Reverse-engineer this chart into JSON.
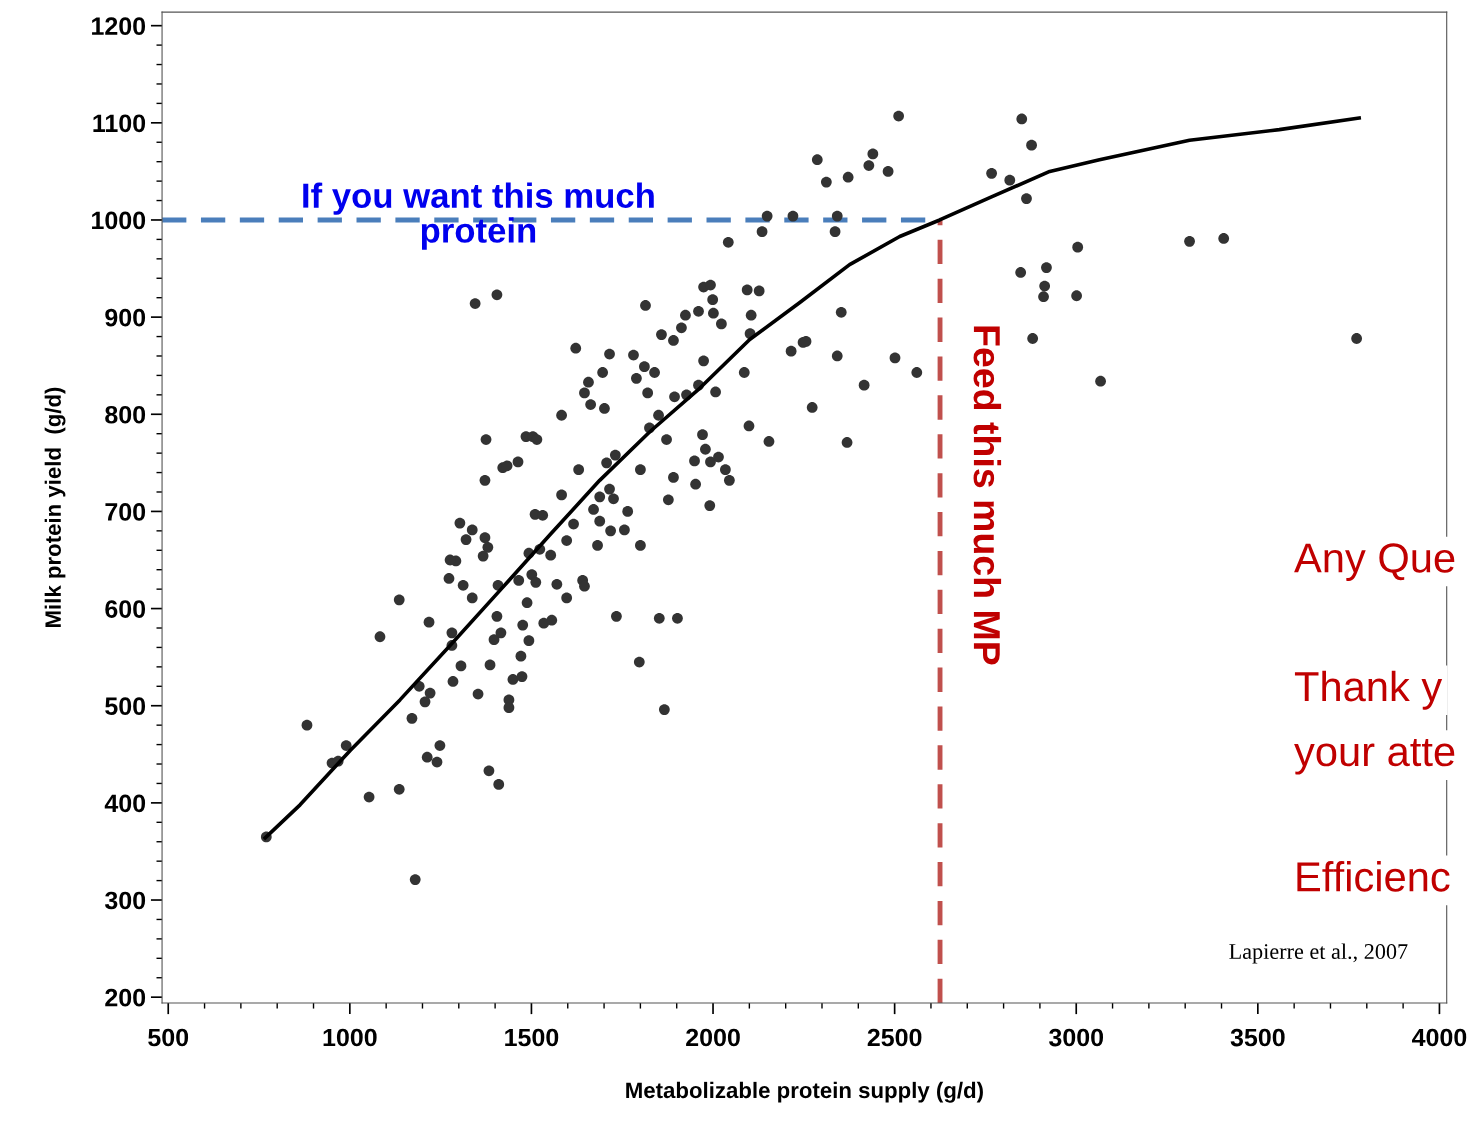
{
  "chart_data": {
    "type": "scatter",
    "xlabel": "Metabolizable protein supply (g/d)",
    "ylabel": "Milk protein yield  (g/d)",
    "xlim": [
      483,
      4020
    ],
    "ylim": [
      194,
      1214
    ],
    "xticks": [
      500,
      1000,
      1500,
      2000,
      2500,
      3000,
      3500,
      4000
    ],
    "yticks": [
      200,
      300,
      400,
      500,
      600,
      700,
      800,
      900,
      1000,
      1100,
      1200
    ],
    "grid": false,
    "marker": "circle",
    "series": [
      {
        "color": "#333333",
        "x": [
          770,
          882,
          951,
          968,
          990,
          1053,
          1083,
          1136,
          1136,
          1171,
          1180,
          1191,
          1207,
          1218,
          1213,
          1221,
          1240,
          1248,
          1284,
          1281,
          1281,
          1273,
          1292,
          1303,
          1312,
          1320,
          1337,
          1345,
          1353,
          1372,
          1380,
          1372,
          1375,
          1383,
          1410,
          1386,
          1397,
          1408,
          1405,
          1416,
          1421,
          1433,
          1438,
          1438,
          1449,
          1463,
          1465,
          1471,
          1474,
          1476,
          1488,
          1485,
          1504,
          1515,
          1493,
          1510,
          1405,
          1493,
          1501,
          1512,
          1523,
          1531,
          1534,
          1553,
          1556,
          1570,
          1583,
          1583,
          1597,
          1597,
          1616,
          1622,
          1641,
          1646,
          1630,
          1646,
          1657,
          1663,
          1671,
          1682,
          1688,
          1688,
          1696,
          1701,
          1707,
          1715,
          1718,
          1734,
          1756,
          1765,
          1715,
          1726,
          1731,
          1781,
          1789,
          1800,
          1800,
          1797,
          1811,
          1814,
          1820,
          1825,
          1839,
          1850,
          1866,
          1852,
          1858,
          1872,
          1877,
          1891,
          1891,
          1894,
          1902,
          1913,
          1924,
          1927,
          1949,
          1960,
          1952,
          1960,
          1974,
          1974,
          1993,
          1999,
          2001,
          1971,
          1979,
          1993,
          2015,
          2007,
          1991,
          2023,
          2034,
          2045,
          2042,
          2086,
          2094,
          2099,
          2105,
          2102,
          2127,
          2135,
          2149,
          2154,
          2215,
          2220,
          2248,
          2256,
          2273,
          2287,
          2312,
          2336,
          2342,
          2353,
          2342,
          2369,
          2372,
          2416,
          2429,
          2440,
          2482,
          2501,
          2511,
          2561,
          2767,
          2817,
          2850,
          2863,
          2877,
          2847,
          2918,
          2913,
          2910,
          2880,
          3004,
          3001,
          3067,
          3312,
          3406,
          3772,
          1367,
          1337,
          1306,
          1276
        ],
        "values": [
          365,
          480,
          441,
          443,
          459,
          406,
          571,
          609,
          414,
          487,
          321,
          520,
          504,
          586,
          447,
          513,
          442,
          459,
          525,
          562,
          575,
          631,
          649,
          688,
          624,
          671,
          611,
          914,
          512,
          673,
          663,
          732,
          774,
          433,
          419,
          542,
          568,
          624,
          592,
          575,
          745,
          747,
          506,
          498,
          527,
          751,
          629,
          551,
          530,
          583,
          606,
          777,
          777,
          774,
          567,
          697,
          923,
          657,
          635,
          627,
          661,
          696,
          585,
          655,
          588,
          625,
          717,
          799,
          611,
          670,
          687,
          868,
          629,
          623,
          743,
          822,
          833,
          810,
          702,
          665,
          690,
          715,
          843,
          806,
          750,
          862,
          680,
          592,
          681,
          700,
          723,
          713,
          758,
          861,
          837,
          665,
          743,
          545,
          849,
          912,
          822,
          786,
          843,
          799,
          496,
          590,
          882,
          774,
          712,
          876,
          735,
          818,
          590,
          889,
          902,
          820,
          752,
          830,
          728,
          906,
          931,
          855,
          933,
          918,
          904,
          779,
          764,
          751,
          756,
          823,
          706,
          893,
          743,
          732,
          977,
          843,
          928,
          788,
          902,
          883,
          927,
          988,
          1004,
          772,
          865,
          1004,
          874,
          875,
          807,
          1062,
          1039,
          988,
          1004,
          905,
          860,
          771,
          1044,
          830,
          1056,
          1068,
          1050,
          858,
          1107,
          843,
          1048,
          1041,
          1104,
          1022,
          1077,
          946,
          951,
          932,
          921,
          878,
          972,
          922,
          834,
          978,
          981,
          878,
          654,
          681,
          541,
          650
        ]
      },
      {
        "type": "line",
        "color": "#000000",
        "marker": "none",
        "line_style": "solid",
        "x": [
          767,
          863,
          1001,
          1138,
          1276,
          1414,
          1551,
          1688,
          1826,
          1964,
          2101,
          2239,
          2376,
          2514,
          2624,
          2762,
          2927,
          3064,
          3312,
          3559,
          3779
        ],
        "values": [
          364,
          398,
          454,
          506,
          562,
          619,
          676,
          732,
          782,
          827,
          877,
          915,
          954,
          983,
          1000,
          1023,
          1050,
          1062,
          1082,
          1093,
          1105
        ]
      }
    ],
    "ref_lines": [
      {
        "axis": "y",
        "value": 1000,
        "label": "If you want this much\nprotein",
        "color": "#4a7ebb",
        "line_style": "dashed"
      },
      {
        "axis": "x",
        "value": 2625,
        "label": "Feed this much MP",
        "color": "#c0504d",
        "line_style": "dashed"
      }
    ],
    "annotations": [
      "Lapierre et al., 2007",
      "Any Que",
      "Thank y",
      "your atte",
      "Efficienc"
    ]
  }
}
